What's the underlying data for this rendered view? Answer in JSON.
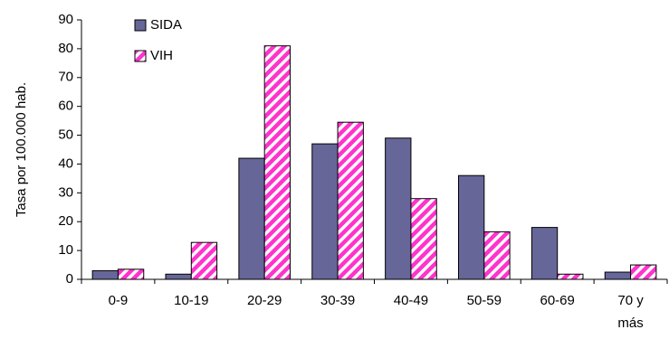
{
  "chart_data": {
    "type": "bar",
    "title": "",
    "xlabel": "",
    "ylabel": "Tasa por 100.000 hab.",
    "ylim": [
      0,
      90
    ],
    "yticks": [
      0,
      10,
      20,
      30,
      40,
      50,
      60,
      70,
      80,
      90
    ],
    "categories": [
      "0-9",
      "10-19",
      "20-29",
      "30-39",
      "40-49",
      "50-59",
      "60-69",
      "70 y más"
    ],
    "series": [
      {
        "name": "SIDA",
        "values": [
          3,
          1.8,
          42,
          47,
          49,
          36,
          18,
          2.5
        ],
        "color": "#666699",
        "pattern": "solid"
      },
      {
        "name": "VIH",
        "values": [
          3.5,
          12.8,
          81,
          54.5,
          28,
          16.5,
          1.8,
          5
        ],
        "color": "#ff33cc",
        "pattern": "diagonal-stripes"
      }
    ],
    "grid": false,
    "legend_position": "top-left"
  }
}
